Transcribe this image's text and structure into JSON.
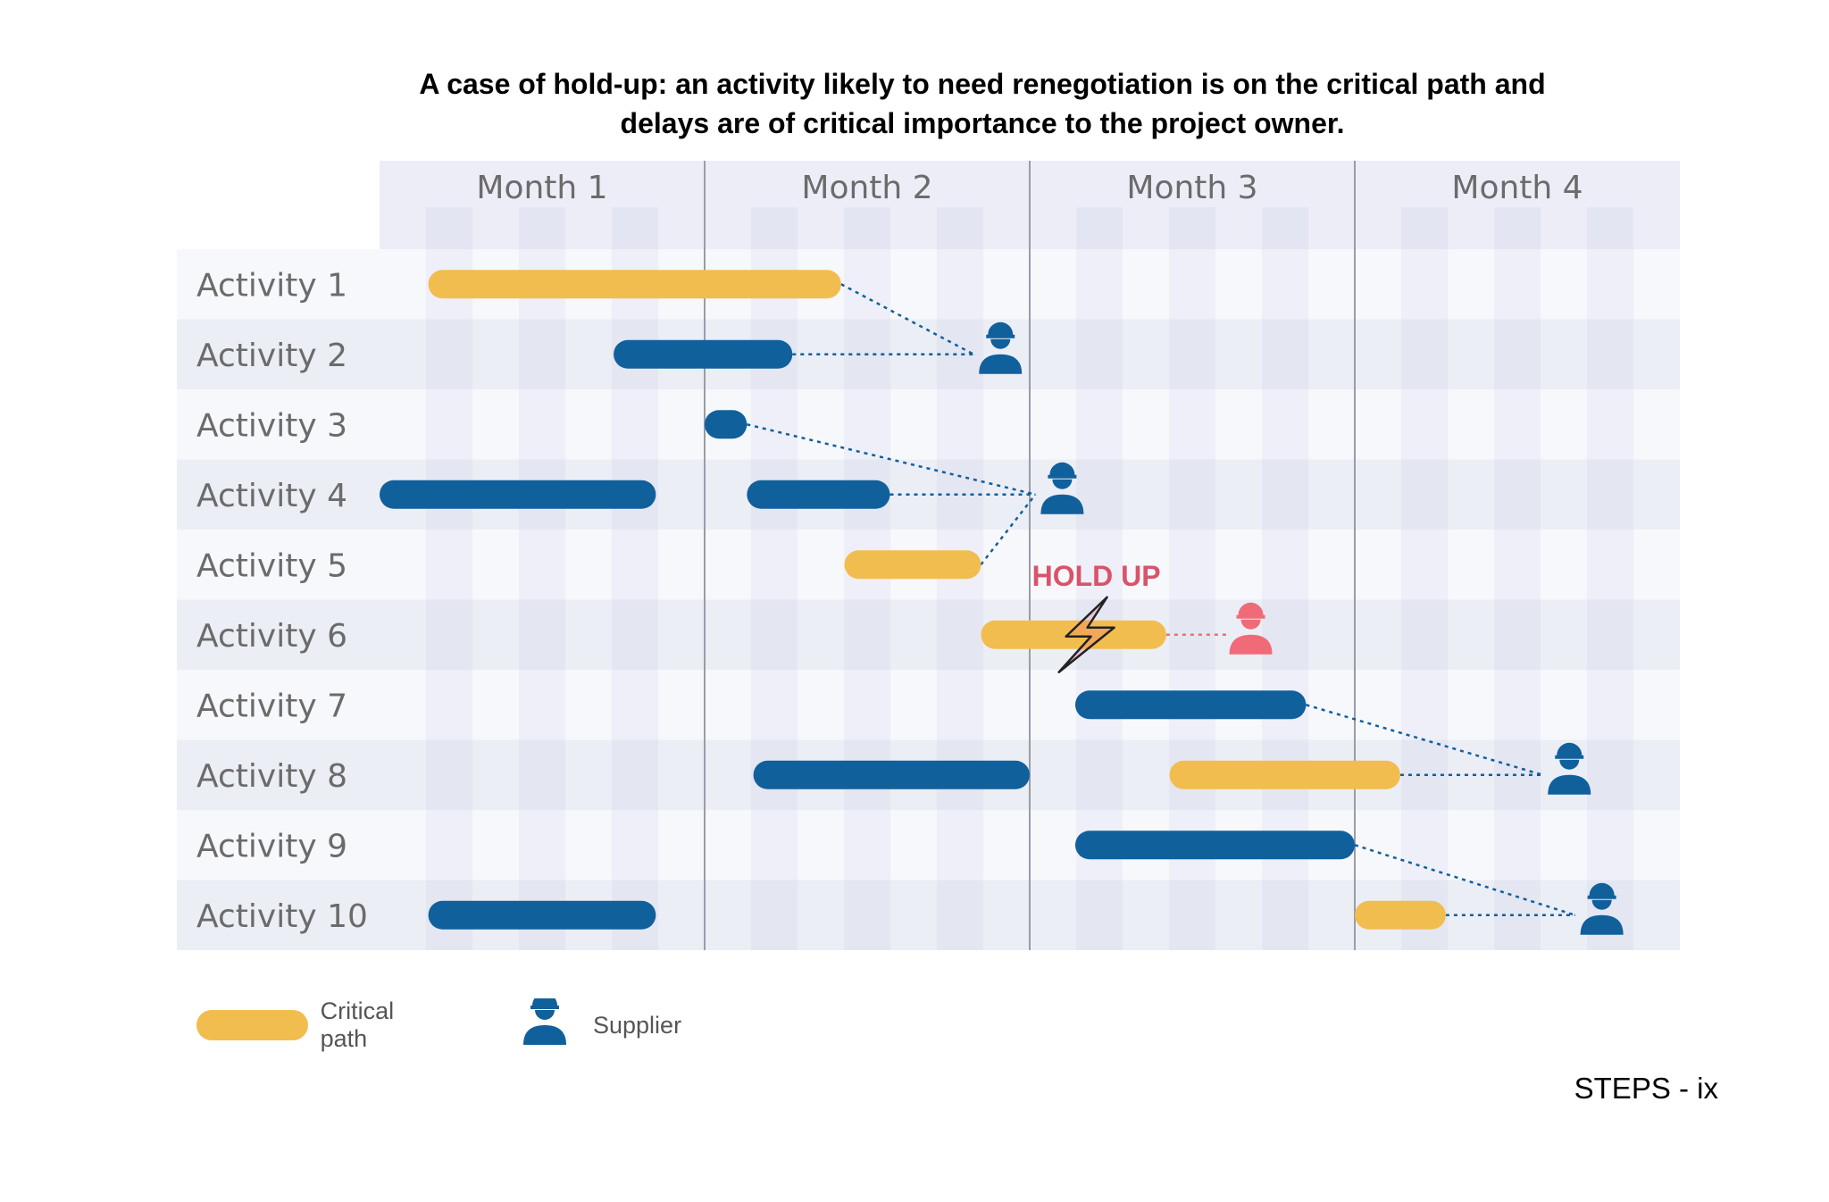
{
  "title_line1": "A case of hold-up: an activity likely to need renegotiation is on the critical path and",
  "title_line2": "delays are of critical importance to the project owner.",
  "footer": "STEPS - ix",
  "legend": {
    "critical_label": "Critical path",
    "supplier_label": "Supplier"
  },
  "colors": {
    "critical": "#f2bd4f",
    "normal": "#10609c",
    "supplier": "#10609c",
    "holdup": "#d9546b",
    "holdup_supplier": "#f06b77"
  },
  "chart_data": {
    "type": "gantt",
    "time_unit": "month",
    "months": [
      "Month 1",
      "Month 2",
      "Month 3",
      "Month 4"
    ],
    "activities": [
      {
        "label": "Activity 1",
        "bars": [
          {
            "start": 0.15,
            "end": 1.42,
            "critical": true
          }
        ]
      },
      {
        "label": "Activity 2",
        "bars": [
          {
            "start": 0.72,
            "end": 1.27,
            "critical": false
          }
        ]
      },
      {
        "label": "Activity 3",
        "bars": [
          {
            "start": 1.0,
            "end": 1.13,
            "critical": false
          }
        ]
      },
      {
        "label": "Activity 4",
        "bars": [
          {
            "start": 0.0,
            "end": 0.85,
            "critical": false
          },
          {
            "start": 1.13,
            "end": 1.57,
            "critical": false
          }
        ]
      },
      {
        "label": "Activity 5",
        "bars": [
          {
            "start": 1.43,
            "end": 1.85,
            "critical": true
          }
        ]
      },
      {
        "label": "Activity 6",
        "bars": [
          {
            "start": 1.85,
            "end": 2.42,
            "critical": true
          }
        ]
      },
      {
        "label": "Activity 7",
        "bars": [
          {
            "start": 2.14,
            "end": 2.85,
            "critical": false
          }
        ]
      },
      {
        "label": "Activity 8",
        "bars": [
          {
            "start": 1.15,
            "end": 2.0,
            "critical": false
          },
          {
            "start": 2.43,
            "end": 3.14,
            "critical": true
          }
        ]
      },
      {
        "label": "Activity 9",
        "bars": [
          {
            "start": 2.14,
            "end": 3.0,
            "critical": false
          }
        ]
      },
      {
        "label": "Activity 10",
        "bars": [
          {
            "start": 0.15,
            "end": 0.85,
            "critical": false
          },
          {
            "start": 3.0,
            "end": 3.28,
            "critical": true
          }
        ]
      }
    ],
    "suppliers": [
      {
        "time": 1.91,
        "row": 1,
        "links": [
          {
            "row": 0,
            "time": 1.42
          },
          {
            "row": 1,
            "time": 1.27
          }
        ]
      },
      {
        "time": 2.1,
        "row": 3,
        "links": [
          {
            "row": 2,
            "time": 1.13
          },
          {
            "row": 3,
            "time": 1.57
          },
          {
            "row": 4,
            "time": 1.85
          }
        ]
      },
      {
        "time": 2.68,
        "row": 5,
        "holdup": true,
        "links": [
          {
            "row": 5,
            "time": 2.42
          }
        ]
      },
      {
        "time": 3.66,
        "row": 7,
        "links": [
          {
            "row": 6,
            "time": 2.85
          },
          {
            "row": 7,
            "time": 3.14
          }
        ]
      },
      {
        "time": 3.76,
        "row": 9,
        "links": [
          {
            "row": 8,
            "time": 3.0
          },
          {
            "row": 9,
            "time": 3.28
          }
        ]
      }
    ],
    "holdup": {
      "label": "HOLD UP",
      "row": 5,
      "time": 2.15
    }
  }
}
